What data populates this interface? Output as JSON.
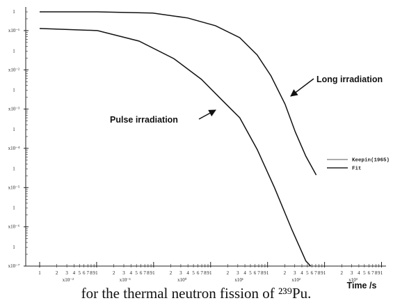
{
  "chart_data": {
    "type": "line",
    "log_x": true,
    "log_y": true,
    "xlabel": "Time /s",
    "caption": "for the thermal neutron fission of ²³⁹Pu.",
    "legend": [
      {
        "name": "Keepin(1965)",
        "width": 0.8
      },
      {
        "name": "Fit",
        "width": 1.6
      }
    ],
    "xlim": [
      0.0057,
      12000
    ],
    "ylim": [
      1e-07,
      0.4
    ],
    "series": [
      {
        "name": "Long irradiation",
        "color": "#111111",
        "x": [
          0.01,
          0.103,
          0.97,
          3.96,
          12.2,
          32.5,
          65.6,
          115,
          202,
          307,
          469,
          714
        ],
        "values": [
          0.3,
          0.3,
          0.28,
          0.21,
          0.133,
          0.066,
          0.024,
          0.007,
          0.00135,
          0.00026,
          6.3e-05,
          2.1e-05
        ]
      },
      {
        "name": "Pulse irradiation",
        "color": "#111111",
        "x": [
          0.01,
          0.103,
          0.555,
          2.26,
          6.93,
          16.1,
          32.5,
          65.6,
          132,
          267,
          469,
          570
        ],
        "values": [
          0.113,
          0.1,
          0.054,
          0.0194,
          0.0057,
          0.00166,
          0.0006,
          9.4e-05,
          1e-05,
          8.5e-07,
          1.35e-07,
          1e-07
        ]
      }
    ],
    "yticks": [
      {
        "value": 0.1,
        "label": "1 x10⁻¹"
      },
      {
        "value": 0.01,
        "label": "1 x10⁻²"
      },
      {
        "value": 0.001,
        "label": "1 x10⁻³"
      },
      {
        "value": 0.0001,
        "label": "1 x10⁻⁴"
      },
      {
        "value": 1e-05,
        "label": "1 x10⁻⁵"
      },
      {
        "value": 1e-06,
        "label": "1 x10⁻⁶"
      },
      {
        "value": 1e-07,
        "label": "1 x10⁻⁷"
      }
    ],
    "xdecades": [
      {
        "value": 0.01,
        "label": "x10⁻²"
      },
      {
        "value": 0.1,
        "label": "x10⁻¹"
      },
      {
        "value": 1,
        "label": "x10⁰"
      },
      {
        "value": 10,
        "label": "x10¹"
      },
      {
        "value": 100,
        "label": "x10²"
      },
      {
        "value": 1000,
        "label": "x10³"
      }
    ],
    "xticks": [
      {
        "value": 0.01,
        "label": "1"
      },
      {
        "value": 0.02,
        "label": "2"
      },
      {
        "value": 0.03,
        "label": "3"
      },
      {
        "value": 0.04,
        "label": "4"
      },
      {
        "value": 0.05,
        "label": "5"
      },
      {
        "value": 0.06,
        "label": "6"
      },
      {
        "value": 0.07,
        "label": "7"
      },
      {
        "value": 0.08,
        "label": "8"
      },
      {
        "value": 0.09,
        "label": "9"
      },
      {
        "value": 0.1,
        "label": "1"
      },
      {
        "value": 0.2,
        "label": "2"
      },
      {
        "value": 0.3,
        "label": "3"
      },
      {
        "value": 0.4,
        "label": "4"
      },
      {
        "value": 0.5,
        "label": "5"
      },
      {
        "value": 0.6,
        "label": "6"
      },
      {
        "value": 0.7,
        "label": "7"
      },
      {
        "value": 0.8,
        "label": "8"
      },
      {
        "value": 0.9,
        "label": "9"
      },
      1,
      2,
      3,
      4,
      5,
      6,
      7,
      8,
      9,
      {
        "value": 10,
        "label": "1"
      },
      {
        "value": 20,
        "label": "2"
      },
      {
        "value": 30,
        "label": "3"
      },
      {
        "value": 40,
        "label": "4"
      },
      {
        "value": 50,
        "label": "5"
      },
      {
        "value": 60,
        "label": "6"
      },
      {
        "value": 70,
        "label": "7"
      },
      {
        "value": 80,
        "label": "8"
      },
      {
        "value": 90,
        "label": "9"
      },
      {
        "value": 100,
        "label": "1"
      },
      {
        "value": 200,
        "label": "2"
      },
      {
        "value": 300,
        "label": "3"
      },
      {
        "value": 400,
        "label": "4"
      },
      {
        "value": 500,
        "label": "5"
      },
      {
        "value": 600,
        "label": "6"
      },
      {
        "value": 700,
        "label": "7"
      },
      {
        "value": 800,
        "label": "8"
      },
      {
        "value": 900,
        "label": "9"
      },
      {
        "value": 1000,
        "label": "1"
      },
      {
        "value": 2000,
        "label": "2"
      },
      {
        "value": 3000,
        "label": "3"
      },
      {
        "value": 4000,
        "label": "4"
      },
      {
        "value": 5000,
        "label": "5"
      },
      {
        "value": 6000,
        "label": "6"
      },
      {
        "value": 7000,
        "label": "7"
      },
      {
        "value": 8000,
        "label": "8"
      },
      {
        "value": 9000,
        "label": "9"
      },
      {
        "value": 10000,
        "label": "1"
      }
    ]
  }
}
